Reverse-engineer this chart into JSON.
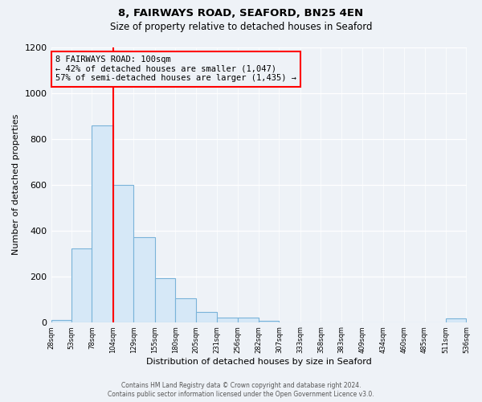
{
  "title": "8, FAIRWAYS ROAD, SEAFORD, BN25 4EN",
  "subtitle": "Size of property relative to detached houses in Seaford",
  "xlabel": "Distribution of detached houses by size in Seaford",
  "ylabel": "Number of detached properties",
  "bin_edges": [
    28,
    53,
    78,
    104,
    129,
    155,
    180,
    205,
    231,
    256,
    282,
    307,
    333,
    358,
    383,
    409,
    434,
    460,
    485,
    511,
    536
  ],
  "bar_heights": [
    10,
    320,
    860,
    600,
    370,
    190,
    105,
    45,
    20,
    20,
    5,
    0,
    0,
    0,
    0,
    0,
    0,
    0,
    0,
    15
  ],
  "bar_face_color": "#d6e8f7",
  "bar_edge_color": "#7ab3d9",
  "vline_x": 104,
  "vline_color": "red",
  "annotation_title": "8 FAIRWAYS ROAD: 100sqm",
  "annotation_line1": "← 42% of detached houses are smaller (1,047)",
  "annotation_line2": "57% of semi-detached houses are larger (1,435) →",
  "annotation_box_color": "red",
  "ylim": [
    0,
    1200
  ],
  "yticks": [
    0,
    200,
    400,
    600,
    800,
    1000,
    1200
  ],
  "footnote1": "Contains HM Land Registry data © Crown copyright and database right 2024.",
  "footnote2": "Contains public sector information licensed under the Open Government Licence v3.0.",
  "bg_color": "#eef2f7"
}
